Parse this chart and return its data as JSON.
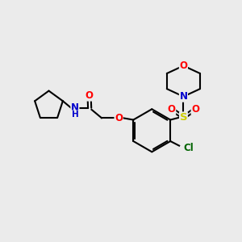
{
  "bg_color": "#ebebeb",
  "bond_color": "#000000",
  "bond_width": 1.5,
  "atom_colors": {
    "O": "#ff0000",
    "N": "#0000cd",
    "S": "#cccc00",
    "Cl": "#006400",
    "H": "#000000",
    "C": "#000000"
  },
  "font_size": 8.5,
  "figsize": [
    3.0,
    3.0
  ],
  "dpi": 100,
  "xlim": [
    0,
    10
  ],
  "ylim": [
    0,
    10
  ]
}
